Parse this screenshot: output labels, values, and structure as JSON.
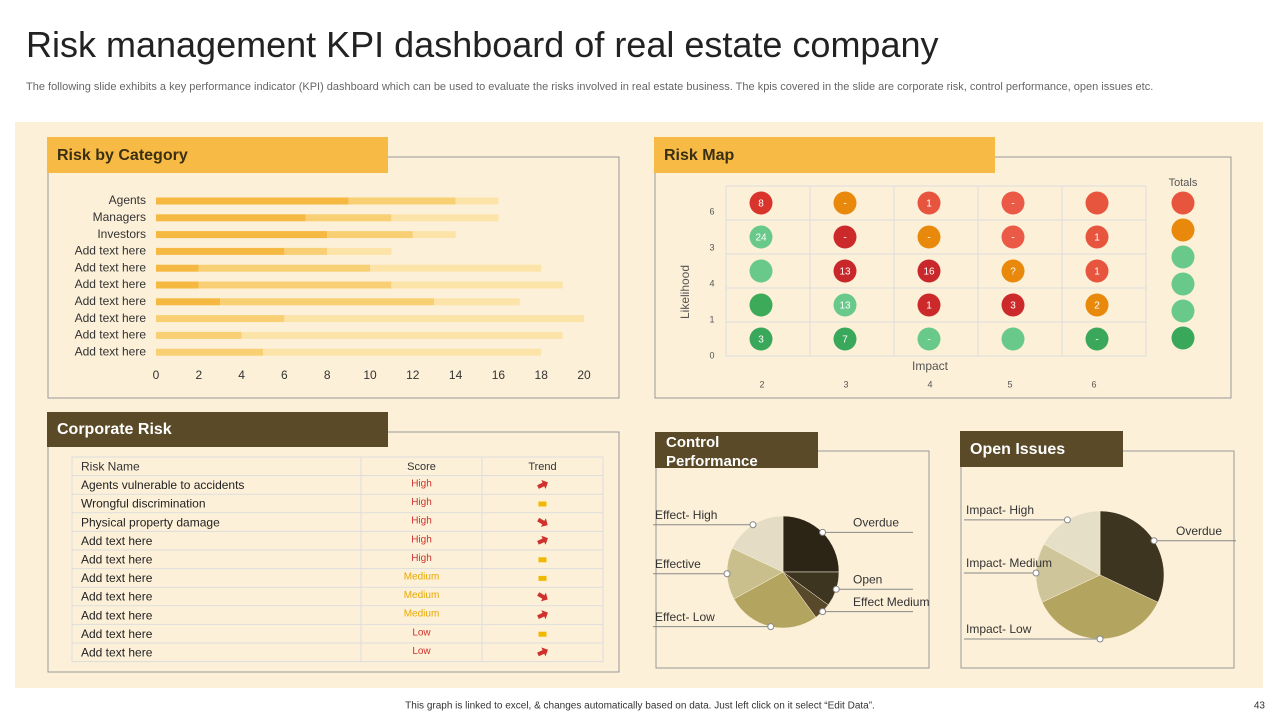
{
  "header": {
    "title": "Risk management KPI dashboard of real estate company",
    "subtitle": "The following slide exhibits a key performance indicator (KPI) dashboard which can be used to evaluate the risks involved in real estate business. The kpis covered in the slide are corporate risk, control performance, open issues etc."
  },
  "chart_data": [
    {
      "type": "bar",
      "title": "Risk by Category",
      "orientation": "horizontal",
      "stacked": true,
      "categories": [
        "Agents",
        "Managers",
        "Investors",
        "Add text here",
        "Add text here",
        "Add text here",
        "Add text here",
        "Add text here",
        "Add text here",
        "Add text here"
      ],
      "series": [
        {
          "color": "#f5b942",
          "values": [
            9,
            7,
            8,
            6,
            2,
            2,
            3,
            0,
            0,
            0
          ]
        },
        {
          "color": "#f9cf73",
          "values": [
            5,
            4,
            4,
            2,
            8,
            9,
            10,
            6,
            4,
            5
          ]
        },
        {
          "color": "#fce3a8",
          "values": [
            2,
            5,
            2,
            3,
            8,
            8,
            4,
            14,
            15,
            13
          ]
        }
      ],
      "xlim": [
        0,
        20
      ],
      "xticks": [
        0,
        2,
        4,
        6,
        8,
        10,
        12,
        14,
        16,
        18,
        20
      ]
    },
    {
      "type": "pie",
      "title": "Control Performance",
      "categories": [
        "Overdue",
        "Open",
        "Effect Medium",
        "Effect- Low",
        "Effective",
        "Effect- High"
      ],
      "values": [
        25,
        10,
        5,
        27,
        15,
        18
      ],
      "colors": [
        "#2c2516",
        "#3d3520",
        "#57492a",
        "#b3a460",
        "#c9bf8d",
        "#e4dcc4"
      ]
    },
    {
      "type": "pie",
      "title": "Open Issues",
      "categories": [
        "Overdue",
        "Impact- Low",
        "Impact- Medium",
        "Impact- High"
      ],
      "values": [
        32,
        36,
        15,
        17
      ],
      "colors": [
        "#3e3520",
        "#b3a460",
        "#cfc59a",
        "#e6dfc8"
      ]
    }
  ],
  "risk_map": {
    "title": "Risk Map",
    "y_axis_label": "Likelihood",
    "x_axis_label": "Impact",
    "totals_label": "Totals",
    "y_labels": [
      "6",
      "3",
      "4",
      "1",
      "0"
    ],
    "x_labels": [
      "2",
      "3",
      "4",
      "5",
      "6"
    ],
    "rows": [
      [
        {
          "label": "8",
          "color": "#d9342b"
        },
        {
          "label": "-",
          "color": "#e8890c"
        },
        {
          "label": "1",
          "color": "#e8553e"
        },
        {
          "label": "-",
          "color": "#ea5a47"
        },
        {
          "label": null,
          "color": "#e8553e"
        }
      ],
      [
        {
          "label": "24",
          "color": "#69c98a"
        },
        {
          "label": "-",
          "color": "#cc2a2a"
        },
        {
          "label": "-",
          "color": "#e8890c"
        },
        {
          "label": "-",
          "color": "#ea5a47"
        },
        {
          "label": "1",
          "color": "#e8553e"
        }
      ],
      [
        {
          "label": null,
          "color": "#69c98a"
        },
        {
          "label": "13",
          "color": "#c8282b"
        },
        {
          "label": "16",
          "color": "#c8282b"
        },
        {
          "label": "?",
          "color": "#e8890c"
        },
        {
          "label": "1",
          "color": "#e8553e"
        }
      ],
      [
        {
          "label": null,
          "color": "#3daa5a"
        },
        {
          "label": "13",
          "color": "#69c98a"
        },
        {
          "label": "1",
          "color": "#cc2a2a"
        },
        {
          "label": "3",
          "color": "#cc2a2a"
        },
        {
          "label": "2",
          "color": "#e8890c"
        }
      ],
      [
        {
          "label": "3",
          "color": "#3aa85a"
        },
        {
          "label": "7",
          "color": "#3aa85a"
        },
        {
          "label": "-",
          "color": "#69c98a"
        },
        {
          "label": null,
          "color": "#69c98a"
        },
        {
          "label": "-",
          "color": "#3aa85a"
        }
      ]
    ],
    "totals": [
      "#e8553e",
      "#e8890c",
      "#69c98a",
      "#69c98a",
      "#69c98a",
      "#3aa85a"
    ]
  },
  "corporate_risk": {
    "title": "Corporate Risk",
    "columns": [
      "Risk Name",
      "Score",
      "Trend"
    ],
    "rows": [
      {
        "name": "Agents vulnerable to accidents",
        "score": "High",
        "score_color": "#d0312d"
      },
      {
        "name": "Wrongful discrimination",
        "score": "High",
        "score_color": "#d0312d"
      },
      {
        "name": "Physical property damage",
        "score": "High",
        "score_color": "#d0312d"
      },
      {
        "name": "Add text here",
        "score": "High",
        "score_color": "#d0312d"
      },
      {
        "name": "Add text here",
        "score": "High",
        "score_color": "#d0312d"
      },
      {
        "name": "Add text here",
        "score": "Medium",
        "score_color": "#e8a800"
      },
      {
        "name": "Add text here",
        "score": "Medium",
        "score_color": "#e8a800"
      },
      {
        "name": "Add text here",
        "score": "Medium",
        "score_color": "#e8a800"
      },
      {
        "name": "Add text here",
        "score": "Low",
        "score_color": "#d0312d"
      },
      {
        "name": "Add text here",
        "score": "Low",
        "score_color": "#d0312d"
      }
    ]
  },
  "footer": {
    "note": "This graph is linked to excel, & changes automatically based on data. Just left click on it select “Edit Data”.",
    "page": "43"
  }
}
